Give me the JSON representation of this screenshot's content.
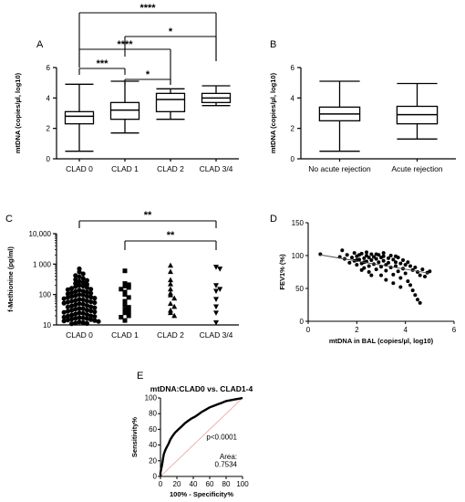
{
  "chart_data": [
    {
      "panel": "A",
      "type": "boxplot",
      "categories": [
        "CLAD 0",
        "CLAD 1",
        "CLAD 2",
        "CLAD 3/4"
      ],
      "boxes": [
        {
          "min": 0.5,
          "q1": 2.3,
          "median": 2.8,
          "q3": 3.1,
          "max": 4.9
        },
        {
          "min": 1.7,
          "q1": 2.6,
          "median": 3.2,
          "q3": 3.7,
          "max": 5.1
        },
        {
          "min": 2.6,
          "q1": 3.1,
          "median": 3.9,
          "q3": 4.3,
          "max": 4.6
        },
        {
          "min": 3.5,
          "q1": 3.7,
          "median": 4.0,
          "q3": 4.3,
          "max": 4.8
        }
      ],
      "ylabel": "mtDNA (copies/µl, log10)",
      "yticks": [
        "0",
        "2",
        "4",
        "6"
      ],
      "ylim": [
        0,
        6
      ],
      "significance": [
        {
          "from": 0,
          "to": 3,
          "label": "****"
        },
        {
          "from": 1,
          "to": 3,
          "label": "*"
        },
        {
          "from": 0,
          "to": 2,
          "label": "****"
        },
        {
          "from": 0,
          "to": 1,
          "label": "***"
        },
        {
          "from": 1,
          "to": 2,
          "label": "*"
        }
      ]
    },
    {
      "panel": "B",
      "type": "boxplot",
      "categories": [
        "No acute rejection",
        "Acute rejection"
      ],
      "boxes": [
        {
          "min": 0.5,
          "q1": 2.5,
          "median": 2.95,
          "q3": 3.4,
          "max": 5.1
        },
        {
          "min": 1.3,
          "q1": 2.3,
          "median": 2.9,
          "q3": 3.45,
          "max": 4.95
        }
      ],
      "ylabel": "mtDNA (copies/µl, log10)",
      "yticks": [
        "0",
        "2",
        "4",
        "6"
      ],
      "ylim": [
        0,
        6
      ]
    },
    {
      "panel": "C",
      "type": "scatter",
      "categories": [
        "CLAD 0",
        "CLAD 1",
        "CLAD 2",
        "CLAD 3/4"
      ],
      "ylabel": "f-Methionine (pg/ml)",
      "yscale": "log",
      "ylim": [
        10,
        10000
      ],
      "yticks": [
        "10",
        "100",
        "1 000",
        "10,000"
      ],
      "groups": [
        {
          "marker": "circle",
          "values": [
            700,
            550,
            480,
            420,
            380,
            340,
            310,
            290,
            270,
            250,
            230,
            215,
            200,
            190,
            180,
            170,
            160,
            150,
            145,
            140,
            130,
            125,
            120,
            115,
            110,
            105,
            100,
            96,
            92,
            88,
            85,
            82,
            79,
            76,
            73,
            70,
            67,
            64,
            62,
            60,
            58,
            56,
            54,
            52,
            50,
            48,
            46,
            44,
            42,
            40,
            39,
            37,
            35,
            34,
            33,
            31,
            30,
            29,
            28,
            27,
            26,
            25,
            24,
            23,
            22,
            21,
            20,
            19.5,
            19,
            18,
            17.5,
            17,
            16.5,
            16,
            15.5,
            15,
            14.5,
            14,
            13.5,
            13,
            12.5,
            12,
            11.5,
            11.2,
            11
          ]
        },
        {
          "marker": "square",
          "values": [
            600,
            230,
            210,
            190,
            170,
            150,
            120,
            100,
            80,
            60,
            45,
            38,
            32,
            28,
            25,
            20,
            18,
            14
          ]
        },
        {
          "marker": "triangle",
          "values": [
            900,
            560,
            300,
            220,
            150,
            110,
            95,
            75,
            50,
            40,
            30,
            25,
            20
          ]
        },
        {
          "marker": "triangle-down",
          "values": [
            800,
            700,
            200,
            150,
            130,
            70,
            40,
            25,
            12
          ]
        }
      ],
      "significance": [
        {
          "from": 0,
          "to": 3,
          "label": "**"
        },
        {
          "from": 1,
          "to": 3,
          "label": "**"
        }
      ]
    },
    {
      "panel": "D",
      "type": "scatter",
      "xlabel": "mtDNA in BAL (copies/µl, log10)",
      "ylabel": "FEV1% (%)",
      "xlim": [
        0,
        6
      ],
      "ylim": [
        0,
        150
      ],
      "xticks": [
        "0",
        "2",
        "4",
        "6"
      ],
      "yticks": [
        "0",
        "50",
        "100",
        "150"
      ],
      "trend": {
        "x": [
          0.5,
          5.0
        ],
        "y": [
          101,
          73
        ]
      },
      "points": [
        [
          0.5,
          102
        ],
        [
          1.3,
          98
        ],
        [
          1.4,
          108
        ],
        [
          1.5,
          95
        ],
        [
          1.6,
          101
        ],
        [
          1.7,
          89
        ],
        [
          1.8,
          97
        ],
        [
          1.9,
          104
        ],
        [
          1.9,
          92
        ],
        [
          2.0,
          99
        ],
        [
          2.0,
          86
        ],
        [
          2.1,
          101
        ],
        [
          2.1,
          94
        ],
        [
          2.2,
          88
        ],
        [
          2.2,
          103
        ],
        [
          2.3,
          96
        ],
        [
          2.3,
          81
        ],
        [
          2.4,
          100
        ],
        [
          2.4,
          91
        ],
        [
          2.5,
          97
        ],
        [
          2.5,
          84
        ],
        [
          2.5,
          75
        ],
        [
          2.6,
          102
        ],
        [
          2.6,
          93
        ],
        [
          2.7,
          98
        ],
        [
          2.7,
          87
        ],
        [
          2.8,
          95
        ],
        [
          2.8,
          79
        ],
        [
          2.9,
          101
        ],
        [
          2.9,
          90
        ],
        [
          3.0,
          97
        ],
        [
          3.0,
          83
        ],
        [
          3.0,
          70
        ],
        [
          3.1,
          99
        ],
        [
          3.1,
          92
        ],
        [
          3.2,
          86
        ],
        [
          3.2,
          77
        ],
        [
          3.3,
          96
        ],
        [
          3.3,
          89
        ],
        [
          3.4,
          100
        ],
        [
          3.4,
          82
        ],
        [
          3.5,
          94
        ],
        [
          3.5,
          71
        ],
        [
          3.6,
          90
        ],
        [
          3.6,
          84
        ],
        [
          3.7,
          97
        ],
        [
          3.7,
          76
        ],
        [
          3.8,
          88
        ],
        [
          3.8,
          66
        ],
        [
          3.9,
          93
        ],
        [
          3.9,
          80
        ],
        [
          4.0,
          86
        ],
        [
          4.0,
          73
        ],
        [
          4.1,
          90
        ],
        [
          4.1,
          61
        ],
        [
          4.2,
          84
        ],
        [
          4.2,
          55
        ],
        [
          4.3,
          78
        ],
        [
          4.3,
          47
        ],
        [
          4.4,
          82
        ],
        [
          4.4,
          40
        ],
        [
          4.5,
          75
        ],
        [
          4.5,
          33
        ],
        [
          4.6,
          70
        ],
        [
          4.6,
          28
        ],
        [
          4.7,
          79
        ],
        [
          4.8,
          68
        ],
        [
          4.9,
          74
        ],
        [
          5.0,
          76
        ],
        [
          2.2,
          78
        ],
        [
          2.6,
          70
        ],
        [
          3.2,
          63
        ],
        [
          3.5,
          58
        ],
        [
          3.8,
          52
        ],
        [
          2.0,
          93
        ],
        [
          2.4,
          105
        ],
        [
          2.8,
          102
        ],
        [
          3.1,
          104
        ],
        [
          3.6,
          99
        ],
        [
          2.3,
          90
        ]
      ]
    },
    {
      "panel": "E",
      "type": "line",
      "title": "mtDNA:CLAD0 vs. CLAD1-4",
      "xlabel": "100% - Specificity%",
      "ylabel": "Sensitivity%",
      "xlim": [
        0,
        100
      ],
      "ylim": [
        0,
        100
      ],
      "xticks": [
        "0",
        "20",
        "40",
        "60",
        "80",
        "100"
      ],
      "yticks": [
        "0",
        "20",
        "40",
        "60",
        "80",
        "100"
      ],
      "p_text": "p<0.0001",
      "area_label": "Area:",
      "area_value": "0.7534",
      "roc": [
        [
          0,
          0
        ],
        [
          0,
          5
        ],
        [
          1,
          10
        ],
        [
          2,
          15
        ],
        [
          3,
          22
        ],
        [
          4,
          28
        ],
        [
          6,
          34
        ],
        [
          8,
          38
        ],
        [
          10,
          42
        ],
        [
          12,
          47
        ],
        [
          15,
          52
        ],
        [
          18,
          56
        ],
        [
          22,
          60
        ],
        [
          26,
          64
        ],
        [
          30,
          68
        ],
        [
          34,
          71
        ],
        [
          38,
          74
        ],
        [
          42,
          76
        ],
        [
          46,
          79
        ],
        [
          50,
          82
        ],
        [
          55,
          85
        ],
        [
          60,
          88
        ],
        [
          65,
          90
        ],
        [
          70,
          92
        ],
        [
          75,
          94
        ],
        [
          80,
          96
        ],
        [
          85,
          97
        ],
        [
          90,
          98
        ],
        [
          95,
          99
        ],
        [
          100,
          100
        ]
      ]
    }
  ]
}
